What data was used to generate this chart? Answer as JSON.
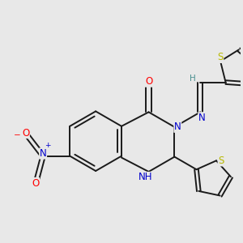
{
  "bg_color": "#e8e8e8",
  "bond_color": "#1a1a1a",
  "bond_width": 1.4,
  "atom_colors": {
    "O": "#ff0000",
    "N": "#0000cc",
    "S": "#b8b800",
    "H_color": "#4a9090",
    "NO2_N": "#0000cc",
    "NO2_O": "#ff0000"
  },
  "font_size_atom": 8.5,
  "font_size_H": 7.5
}
